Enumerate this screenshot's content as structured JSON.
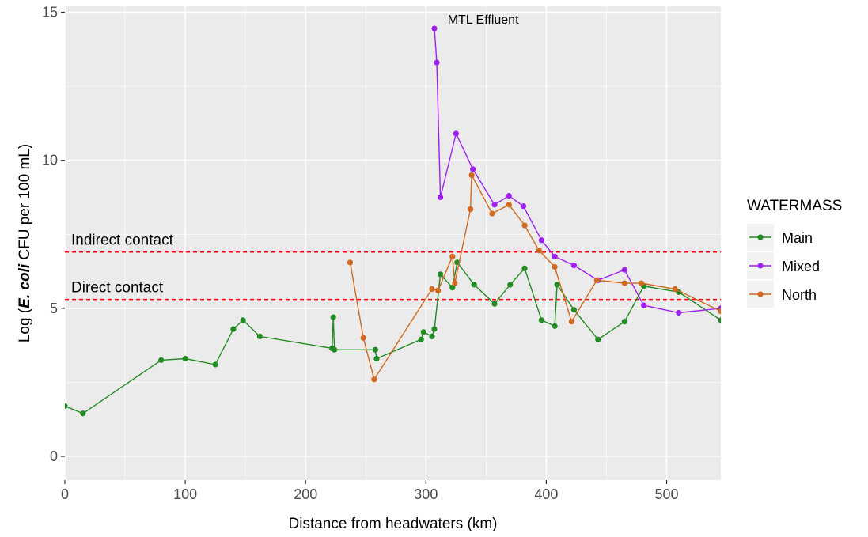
{
  "chart_data": {
    "type": "line",
    "xlabel": "Distance from headwaters (km)",
    "ylabel": {
      "prefix": "Log (",
      "italic": "E. coli",
      "suffix": " CFU per 100 mL)"
    },
    "xlim": [
      0,
      545
    ],
    "ylim": [
      -0.8,
      15.2
    ],
    "x_ticks": [
      0,
      100,
      200,
      300,
      400,
      500
    ],
    "y_ticks": [
      0,
      5,
      10,
      15
    ],
    "grid": true,
    "legend": {
      "title": "WATERMASS",
      "position": "right"
    },
    "series": [
      {
        "name": "Main",
        "color": "#228B22",
        "points": [
          [
            0,
            1.7
          ],
          [
            15,
            1.45
          ],
          [
            80,
            3.25
          ],
          [
            100,
            3.3
          ],
          [
            125,
            3.1
          ],
          [
            140,
            4.3
          ],
          [
            148,
            4.6
          ],
          [
            162,
            4.05
          ],
          [
            222,
            3.65
          ],
          [
            223,
            4.7
          ],
          [
            224,
            3.6
          ],
          [
            258,
            3.6
          ],
          [
            259,
            3.3
          ],
          [
            296,
            3.95
          ],
          [
            298,
            4.2
          ],
          [
            305,
            4.05
          ],
          [
            307,
            4.3
          ],
          [
            312,
            6.15
          ],
          [
            322,
            5.7
          ],
          [
            326,
            6.55
          ],
          [
            340,
            5.8
          ],
          [
            357,
            5.15
          ],
          [
            370,
            5.8
          ],
          [
            382,
            6.35
          ],
          [
            396,
            4.6
          ],
          [
            407,
            4.4
          ],
          [
            409,
            5.8
          ],
          [
            423,
            4.95
          ],
          [
            443,
            3.95
          ],
          [
            465,
            4.55
          ],
          [
            481,
            5.75
          ],
          [
            510,
            5.55
          ],
          [
            545,
            4.6
          ]
        ]
      },
      {
        "name": "Mixed",
        "color": "#A020F0",
        "points": [
          [
            307,
            14.45
          ],
          [
            309,
            13.3
          ],
          [
            312,
            8.75
          ],
          [
            325,
            10.9
          ],
          [
            339,
            9.7
          ],
          [
            357,
            8.5
          ],
          [
            369,
            8.8
          ],
          [
            381,
            8.45
          ],
          [
            396,
            7.3
          ],
          [
            407,
            6.75
          ],
          [
            423,
            6.45
          ],
          [
            443,
            5.95
          ],
          [
            465,
            6.3
          ],
          [
            481,
            5.1
          ],
          [
            510,
            4.85
          ],
          [
            545,
            5.0
          ]
        ]
      },
      {
        "name": "North",
        "color": "#D2691E",
        "points": [
          [
            237,
            6.55
          ],
          [
            248,
            4.0
          ],
          [
            257,
            2.6
          ],
          [
            305,
            5.65
          ],
          [
            310,
            5.6
          ],
          [
            322,
            6.75
          ],
          [
            324,
            5.85
          ],
          [
            337,
            8.35
          ],
          [
            338,
            9.5
          ],
          [
            355,
            8.2
          ],
          [
            369,
            8.5
          ],
          [
            382,
            7.8
          ],
          [
            394,
            6.95
          ],
          [
            407,
            6.4
          ],
          [
            421,
            4.55
          ],
          [
            442,
            5.95
          ],
          [
            465,
            5.85
          ],
          [
            479,
            5.85
          ],
          [
            507,
            5.65
          ],
          [
            545,
            4.9
          ]
        ]
      }
    ],
    "reference_lines": [
      {
        "label": "Indirect contact",
        "y": 6.9,
        "color": "#FF0000"
      },
      {
        "label": "Direct contact",
        "y": 5.3,
        "color": "#FF0000"
      }
    ],
    "annotations": [
      {
        "text": "MTL Effluent",
        "x": 318,
        "y": 14.75
      }
    ]
  }
}
